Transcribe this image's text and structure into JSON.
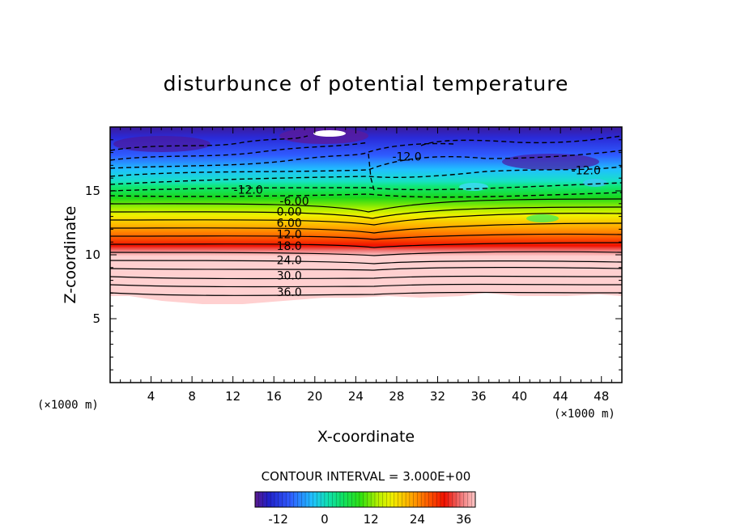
{
  "chart_data": {
    "type": "contour",
    "title": "disturbunce of potential temperature",
    "xlabel": "X-coordinate",
    "ylabel": "Z-coordinate",
    "x_unit": "(×1000 m)",
    "z_unit": "(×1000 m)",
    "xlim": [
      0,
      50
    ],
    "ylim": [
      0,
      20
    ],
    "x_ticks": [
      "4",
      "8",
      "12",
      "16",
      "20",
      "24",
      "28",
      "32",
      "36",
      "40",
      "44",
      "48"
    ],
    "y_ticks": [
      "5",
      "10",
      "15"
    ],
    "contour_interval_text": "CONTOUR INTERVAL = 3.000E+00",
    "contour_interval": 3.0,
    "contour_labels": [
      {
        "text": "36.0",
        "x": 17.5,
        "z": 7.1
      },
      {
        "text": "30.0",
        "x": 17.5,
        "z": 8.4
      },
      {
        "text": "24.0",
        "x": 17.5,
        "z": 9.6
      },
      {
        "text": "18.0",
        "x": 17.5,
        "z": 10.7
      },
      {
        "text": "12.0",
        "x": 17.5,
        "z": 11.6
      },
      {
        "text": "6.00",
        "x": 17.5,
        "z": 12.5
      },
      {
        "text": "0.00",
        "x": 17.5,
        "z": 13.4
      },
      {
        "text": "-6.00",
        "x": 18.0,
        "z": 14.2
      },
      {
        "text": "-12.0",
        "x": 13.5,
        "z": 15.1
      },
      {
        "text": "-12.0",
        "x": 29.0,
        "z": 17.7
      },
      {
        "text": "-12.0",
        "x": 46.5,
        "z": 16.6
      }
    ],
    "colorbar": {
      "min": -18,
      "max": 39,
      "tick_labels": [
        "-12",
        "0",
        "12",
        "24",
        "36"
      ],
      "tick_values": [
        -12,
        0,
        12,
        24,
        36
      ]
    }
  }
}
